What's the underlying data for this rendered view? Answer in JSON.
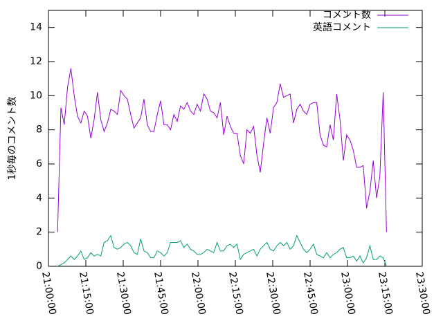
{
  "chart_data": {
    "type": "line",
    "y_label": "1秒毎のコメント数",
    "xlim": [
      "21:00:00",
      "23:30:00"
    ],
    "xticks": [
      "21:00:00",
      "21:15:00",
      "21:30:00",
      "21:45:00",
      "22:00:00",
      "22:15:00",
      "22:30:00",
      "22:45:00",
      "23:00:00",
      "23:15:00",
      "23:30:00"
    ],
    "ylim": [
      0,
      15
    ],
    "yticks": [
      0,
      2,
      4,
      6,
      8,
      10,
      12,
      14
    ],
    "legend": "top-right",
    "x": [
      "21:03:40",
      "21:05:00",
      "21:06:20",
      "21:07:40",
      "21:09:00",
      "21:10:20",
      "21:11:40",
      "21:13:00",
      "21:14:20",
      "21:15:40",
      "21:17:00",
      "21:18:20",
      "21:19:40",
      "21:21:00",
      "21:22:20",
      "21:23:40",
      "21:25:00",
      "21:26:20",
      "21:27:40",
      "21:29:00",
      "21:30:20",
      "21:31:40",
      "21:33:00",
      "21:34:20",
      "21:35:40",
      "21:37:00",
      "21:38:20",
      "21:39:40",
      "21:41:00",
      "21:42:20",
      "21:43:40",
      "21:45:00",
      "21:46:20",
      "21:47:40",
      "21:49:00",
      "21:50:20",
      "21:51:40",
      "21:53:00",
      "21:54:20",
      "21:55:40",
      "21:57:00",
      "21:58:20",
      "21:59:40",
      "22:01:00",
      "22:02:20",
      "22:03:40",
      "22:05:00",
      "22:06:20",
      "22:07:40",
      "22:09:00",
      "22:10:20",
      "22:11:40",
      "22:13:00",
      "22:14:20",
      "22:15:40",
      "22:17:00",
      "22:18:20",
      "22:19:40",
      "22:21:00",
      "22:22:20",
      "22:23:40",
      "22:25:00",
      "22:26:20",
      "22:27:40",
      "22:29:00",
      "22:30:20",
      "22:31:40",
      "22:33:00",
      "22:34:20",
      "22:35:40",
      "22:37:00",
      "22:38:20",
      "22:39:40",
      "22:41:00",
      "22:42:20",
      "22:43:40",
      "22:45:00",
      "22:46:20",
      "22:47:40",
      "22:49:00",
      "22:50:20",
      "22:51:40",
      "22:53:00",
      "22:54:20",
      "22:55:40",
      "22:57:00",
      "22:58:20",
      "22:59:40",
      "23:01:00",
      "23:02:20",
      "23:03:40",
      "23:05:00",
      "23:06:20",
      "23:07:40",
      "23:09:00",
      "23:10:20",
      "23:11:40",
      "23:13:00",
      "23:14:20",
      "23:15:40"
    ],
    "series": [
      {
        "name": "コメント数",
        "color": "#9400d3",
        "values": [
          2.0,
          9.3,
          8.3,
          10.5,
          11.6,
          10.0,
          8.8,
          8.4,
          9.1,
          8.8,
          7.5,
          8.6,
          10.2,
          8.6,
          7.9,
          8.4,
          9.2,
          9.1,
          8.9,
          10.3,
          10.0,
          9.8,
          8.9,
          8.1,
          8.4,
          8.7,
          9.8,
          8.3,
          7.9,
          7.9,
          8.9,
          9.7,
          8.3,
          8.3,
          8.0,
          8.9,
          8.5,
          9.4,
          9.2,
          9.6,
          9.1,
          8.9,
          9.5,
          9.1,
          10.1,
          9.8,
          9.1,
          9.0,
          8.7,
          9.6,
          7.7,
          8.8,
          8.2,
          7.8,
          7.8,
          6.5,
          6.0,
          8.0,
          7.8,
          8.2,
          6.5,
          5.5,
          7.2,
          8.7,
          7.8,
          9.3,
          9.6,
          10.7,
          9.9,
          10.0,
          10.1,
          8.4,
          9.2,
          9.5,
          9.1,
          8.9,
          9.5,
          9.6,
          9.6,
          7.7,
          7.1,
          7.0,
          8.3,
          7.4,
          10.1,
          8.6,
          6.2,
          7.7,
          7.4,
          6.8,
          5.8,
          5.8,
          5.9,
          3.4,
          4.4,
          6.2,
          4.0,
          5.3,
          10.2,
          2.0
        ]
      },
      {
        "name": "英語コメント",
        "color": "#009e73",
        "values": [
          0.0,
          0.1,
          0.2,
          0.4,
          0.6,
          0.4,
          0.6,
          0.9,
          0.4,
          0.5,
          0.8,
          0.6,
          0.7,
          0.6,
          1.4,
          1.5,
          1.8,
          1.1,
          1.0,
          1.1,
          1.3,
          1.4,
          1.2,
          0.8,
          0.7,
          1.6,
          0.9,
          0.8,
          0.5,
          0.5,
          0.9,
          0.8,
          0.6,
          0.8,
          1.4,
          1.4,
          1.4,
          1.5,
          1.1,
          1.3,
          1.0,
          0.9,
          0.7,
          0.7,
          0.8,
          1.0,
          0.9,
          0.8,
          1.4,
          0.9,
          0.9,
          1.2,
          1.3,
          1.1,
          1.3,
          0.4,
          0.7,
          0.8,
          0.9,
          1.0,
          0.6,
          1.0,
          1.2,
          1.4,
          1.0,
          0.9,
          1.2,
          1.4,
          1.2,
          1.4,
          1.0,
          1.2,
          1.8,
          1.4,
          1.0,
          0.8,
          1.0,
          1.3,
          0.7,
          0.6,
          0.5,
          0.8,
          0.5,
          0.7,
          0.8,
          1.0,
          1.1,
          0.5,
          0.5,
          0.6,
          0.3,
          0.6,
          0.2,
          0.5,
          1.2,
          0.4,
          0.4,
          0.6,
          0.5,
          0.0
        ]
      }
    ]
  }
}
